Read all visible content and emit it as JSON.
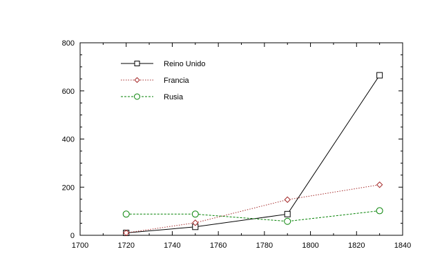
{
  "chart_data": {
    "type": "line",
    "title": "",
    "xlabel": "",
    "ylabel": "",
    "xlim": [
      1700,
      1840
    ],
    "ylim": [
      0,
      800
    ],
    "xticks": [
      1700,
      1720,
      1740,
      1760,
      1780,
      1800,
      1820,
      1840
    ],
    "yticks": [
      0,
      200,
      400,
      600,
      800
    ],
    "grid": false,
    "legend": "top-left",
    "series": [
      {
        "name": "Reino Unido",
        "x": [
          1720,
          1750,
          1790,
          1830
        ],
        "y": [
          10,
          35,
          88,
          665
        ],
        "color": "#000000",
        "marker": "square",
        "line": "solid"
      },
      {
        "name": "Francia",
        "x": [
          1720,
          1750,
          1790,
          1830
        ],
        "y": [
          10,
          52,
          148,
          210
        ],
        "color": "#a52a2a",
        "marker": "diamond",
        "line": "dotted"
      },
      {
        "name": "Rusia",
        "x": [
          1720,
          1750,
          1790,
          1830
        ],
        "y": [
          88,
          88,
          58,
          102
        ],
        "color": "#008000",
        "marker": "circle",
        "line": "dashed"
      }
    ]
  }
}
